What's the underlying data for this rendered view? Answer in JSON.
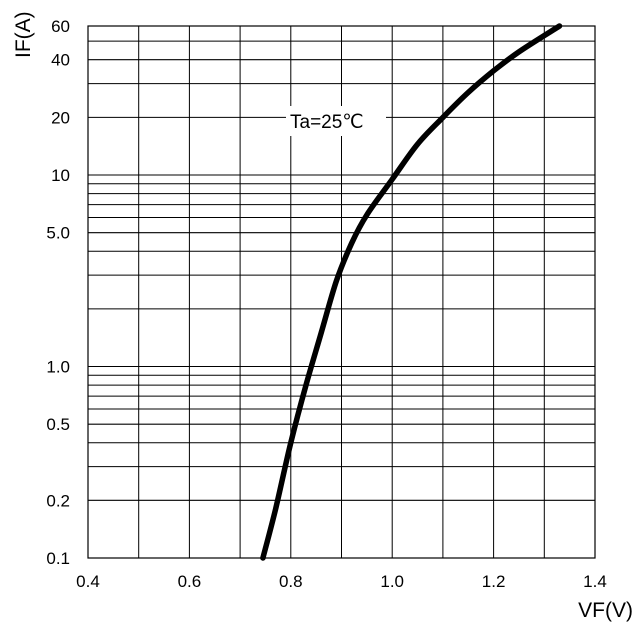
{
  "chart_data": {
    "type": "line",
    "title": "",
    "xlabel": "VF(V)",
    "ylabel": "IF(A)",
    "xlim": [
      0.4,
      1.4
    ],
    "ylim": [
      0.1,
      60
    ],
    "yscale": "log",
    "grid": true,
    "x_tick_labels": [
      "0.4",
      "0.6",
      "0.8",
      "1.0",
      "1.2",
      "1.4"
    ],
    "y_tick_labels": [
      "0.1",
      "0.2",
      "0.5",
      "1.0",
      "5.0",
      "10",
      "20",
      "40",
      "60"
    ],
    "annotation": "Ta=25℃",
    "series": [
      {
        "x": [
          0.745,
          0.77,
          0.8,
          0.83,
          0.86,
          0.89,
          0.92,
          0.95,
          1.0,
          1.05,
          1.1,
          1.15,
          1.2,
          1.25,
          1.33
        ],
        "y": [
          0.1,
          0.18,
          0.4,
          0.8,
          1.5,
          2.8,
          4.4,
          6.2,
          9.5,
          14.5,
          20,
          27,
          35,
          44,
          60
        ]
      }
    ]
  }
}
